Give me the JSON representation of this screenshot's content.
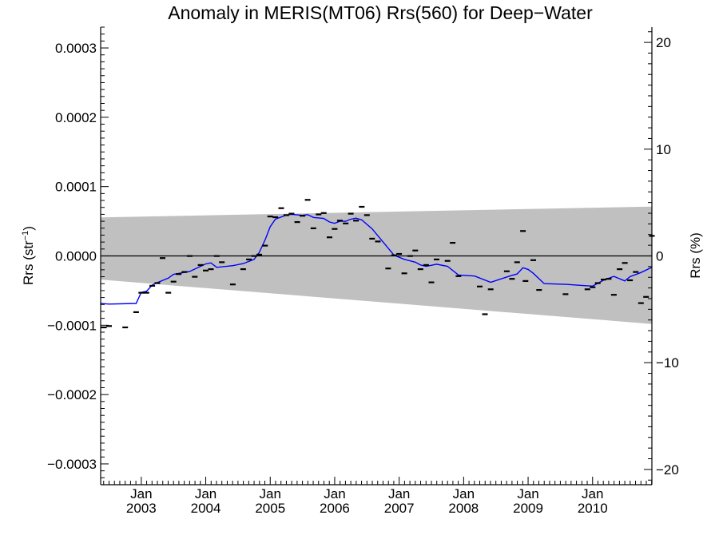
{
  "chart_data": {
    "type": "scatter",
    "title": "Anomaly in MERIS(MT06) Rrs(560) for Deep−Water",
    "ylabel_left": {
      "main": "Rrs (str",
      "sup": "−1",
      "close": ")"
    },
    "ylabel_right": "Rrs (%)",
    "xlabel": "",
    "xlim": [
      2002.37,
      2010.92
    ],
    "ylim": [
      -0.00033,
      0.00033
    ],
    "ylim_right": [
      -21.43,
      21.43
    ],
    "grid": false,
    "legend": "none",
    "colors": {
      "band": "#c0c0c0",
      "line": "#0000ff",
      "points": "#000000",
      "zero": "#000000"
    },
    "x_ticks": [
      {
        "x": 2003.0,
        "month": "Jan",
        "year": "2003"
      },
      {
        "x": 2004.0,
        "month": "Jan",
        "year": "2004"
      },
      {
        "x": 2005.0,
        "month": "Jan",
        "year": "2005"
      },
      {
        "x": 2006.0,
        "month": "Jan",
        "year": "2006"
      },
      {
        "x": 2007.0,
        "month": "Jan",
        "year": "2007"
      },
      {
        "x": 2008.0,
        "month": "Jan",
        "year": "2008"
      },
      {
        "x": 2009.0,
        "month": "Jan",
        "year": "2009"
      },
      {
        "x": 2010.0,
        "month": "Jan",
        "year": "2010"
      }
    ],
    "y_ticks_left": [
      {
        "value": 0.0003,
        "label": "0.0003"
      },
      {
        "value": 0.0002,
        "label": "0.0002"
      },
      {
        "value": 0.0001,
        "label": "0.0001"
      },
      {
        "value": 0.0,
        "label": "0.0000"
      },
      {
        "value": -0.0001,
        "label": "−0.0001"
      },
      {
        "value": -0.0002,
        "label": "−0.0002"
      },
      {
        "value": -0.0003,
        "label": "−0.0003"
      }
    ],
    "y_ticks_right": [
      {
        "value": 20,
        "label": "20"
      },
      {
        "value": 10,
        "label": "10"
      },
      {
        "value": 0,
        "label": "0"
      },
      {
        "value": -10,
        "label": "−10"
      },
      {
        "value": -20,
        "label": "−20"
      }
    ],
    "band": {
      "x": [
        2002.37,
        2010.92
      ],
      "upper": [
        5.55e-05,
        7.12e-05
      ],
      "lower": [
        -3.42e-05,
        -9.81e-05
      ]
    },
    "points": [
      [
        2002.42,
        -0.000103
      ],
      [
        2002.5,
        -0.000101
      ],
      [
        2002.75,
        -0.000103
      ],
      [
        2002.92,
        -8.1e-05
      ],
      [
        2003.0,
        -5.3e-05
      ],
      [
        2003.08,
        -5.3e-05
      ],
      [
        2003.17,
        -4.3e-05
      ],
      [
        2003.25,
        -3.9e-05
      ],
      [
        2003.33,
        -3e-06
      ],
      [
        2003.42,
        -5.3e-05
      ],
      [
        2003.5,
        -3.7e-05
      ],
      [
        2003.58,
        -2.6e-05
      ],
      [
        2003.67,
        -2.3e-05
      ],
      [
        2003.75,
        0.0
      ],
      [
        2003.83,
        -3e-05
      ],
      [
        2003.92,
        -1.3e-05
      ],
      [
        2004.0,
        -2.1e-05
      ],
      [
        2004.08,
        -1.9e-05
      ],
      [
        2004.17,
        0.0
      ],
      [
        2004.25,
        -9e-06
      ],
      [
        2004.42,
        -4.1e-05
      ],
      [
        2004.58,
        -1.9e-05
      ],
      [
        2004.67,
        -5e-06
      ],
      [
        2004.75,
        0.0
      ],
      [
        2004.83,
        2e-06
      ],
      [
        2004.92,
        1.5e-05
      ],
      [
        2005.0,
        5.7e-05
      ],
      [
        2005.08,
        5.6e-05
      ],
      [
        2005.17,
        6.9e-05
      ],
      [
        2005.25,
        5.9e-05
      ],
      [
        2005.33,
        6.1e-05
      ],
      [
        2005.42,
        4.9e-05
      ],
      [
        2005.5,
        5.8e-05
      ],
      [
        2005.58,
        8.1e-05
      ],
      [
        2005.67,
        4e-05
      ],
      [
        2005.75,
        6e-05
      ],
      [
        2005.83,
        6.2e-05
      ],
      [
        2005.92,
        2.7e-05
      ],
      [
        2006.0,
        3.9e-05
      ],
      [
        2006.08,
        5.1e-05
      ],
      [
        2006.17,
        4.7e-05
      ],
      [
        2006.25,
        6.1e-05
      ],
      [
        2006.33,
        5.1e-05
      ],
      [
        2006.42,
        7.1e-05
      ],
      [
        2006.5,
        5.9e-05
      ],
      [
        2006.58,
        2.5e-05
      ],
      [
        2006.67,
        2.1e-05
      ],
      [
        2006.83,
        -1.8e-05
      ],
      [
        2006.92,
        1e-06
      ],
      [
        2007.0,
        3e-06
      ],
      [
        2007.08,
        -2.5e-05
      ],
      [
        2007.17,
        0.0
      ],
      [
        2007.25,
        8e-06
      ],
      [
        2007.33,
        -1.9e-05
      ],
      [
        2007.42,
        -1.3e-05
      ],
      [
        2007.5,
        -3.8e-05
      ],
      [
        2007.58,
        -5e-06
      ],
      [
        2007.75,
        -7e-06
      ],
      [
        2007.83,
        1.9e-05
      ],
      [
        2007.92,
        -2.9e-05
      ],
      [
        2008.25,
        -4.4e-05
      ],
      [
        2008.33,
        -8.4e-05
      ],
      [
        2008.42,
        -4.8e-05
      ],
      [
        2008.67,
        -2.2e-05
      ],
      [
        2008.75,
        -3.3e-05
      ],
      [
        2008.83,
        -9e-06
      ],
      [
        2008.92,
        3.6e-05
      ],
      [
        2008.96,
        -3.6e-05
      ],
      [
        2009.08,
        -6e-06
      ],
      [
        2009.17,
        -4.9e-05
      ],
      [
        2009.58,
        -5.5e-05
      ],
      [
        2009.92,
        -4.8e-05
      ],
      [
        2010.0,
        -4.5e-05
      ],
      [
        2010.08,
        -3.9e-05
      ],
      [
        2010.17,
        -3.4e-05
      ],
      [
        2010.25,
        -3.3e-05
      ],
      [
        2010.33,
        -5.6e-05
      ],
      [
        2010.42,
        -1.9e-05
      ],
      [
        2010.5,
        -1e-05
      ],
      [
        2010.58,
        -3.5e-05
      ],
      [
        2010.67,
        -2.3e-05
      ],
      [
        2010.75,
        -6.8e-05
      ],
      [
        2010.83,
        -5.9e-05
      ],
      [
        2010.92,
        2.9e-05
      ]
    ],
    "trend_line": [
      [
        2002.37,
        -6.85e-05
      ],
      [
        2002.5,
        -6.95e-05
      ],
      [
        2002.92,
        -6.85e-05
      ],
      [
        2003.0,
        -5.25e-05
      ],
      [
        2003.08,
        -5.1e-05
      ],
      [
        2003.17,
        -4.2e-05
      ],
      [
        2003.25,
        -3.85e-05
      ],
      [
        2003.42,
        -3.2e-05
      ],
      [
        2003.5,
        -2.65e-05
      ],
      [
        2003.75,
        -2.25e-05
      ],
      [
        2003.92,
        -1.5e-05
      ],
      [
        2004.0,
        -1.15e-05
      ],
      [
        2004.08,
        -1e-05
      ],
      [
        2004.17,
        -1.65e-05
      ],
      [
        2004.42,
        -1.4e-05
      ],
      [
        2004.58,
        -1.1e-05
      ],
      [
        2004.75,
        -5e-06
      ],
      [
        2004.83,
        5e-06
      ],
      [
        2004.92,
        2.3e-05
      ],
      [
        2005.0,
        4.2e-05
      ],
      [
        2005.08,
        5.3e-05
      ],
      [
        2005.25,
        5.9e-05
      ],
      [
        2005.33,
        6e-05
      ],
      [
        2005.5,
        5.85e-05
      ],
      [
        2005.58,
        5.95e-05
      ],
      [
        2005.67,
        5.55e-05
      ],
      [
        2005.83,
        5.4e-05
      ],
      [
        2005.92,
        4.9e-05
      ],
      [
        2006.0,
        4.7e-05
      ],
      [
        2006.08,
        5e-05
      ],
      [
        2006.17,
        5e-05
      ],
      [
        2006.25,
        5.3e-05
      ],
      [
        2006.33,
        5.45e-05
      ],
      [
        2006.42,
        5.2e-05
      ],
      [
        2006.58,
        3.9e-05
      ],
      [
        2006.75,
        2e-05
      ],
      [
        2006.92,
        1e-06
      ],
      [
        2007.08,
        -5e-06
      ],
      [
        2007.25,
        -9e-06
      ],
      [
        2007.33,
        -1.3e-05
      ],
      [
        2007.42,
        -1.5e-05
      ],
      [
        2007.58,
        -1.2e-05
      ],
      [
        2007.75,
        -1.5e-05
      ],
      [
        2007.92,
        -2.75e-05
      ],
      [
        2008.17,
        -2.9e-05
      ],
      [
        2008.42,
        -3.8e-05
      ],
      [
        2008.75,
        -2.8e-05
      ],
      [
        2008.83,
        -2.6e-05
      ],
      [
        2008.92,
        -1.7e-05
      ],
      [
        2009.0,
        -1.95e-05
      ],
      [
        2009.08,
        -2.5e-05
      ],
      [
        2009.25,
        -4e-05
      ],
      [
        2009.58,
        -4.1e-05
      ],
      [
        2009.83,
        -4.25e-05
      ],
      [
        2010.0,
        -4.35e-05
      ],
      [
        2010.17,
        -3.5e-05
      ],
      [
        2010.33,
        -2.95e-05
      ],
      [
        2010.5,
        -3.6e-05
      ],
      [
        2010.58,
        -3e-05
      ],
      [
        2010.75,
        -2.4e-05
      ],
      [
        2010.92,
        -1.65e-05
      ]
    ]
  }
}
